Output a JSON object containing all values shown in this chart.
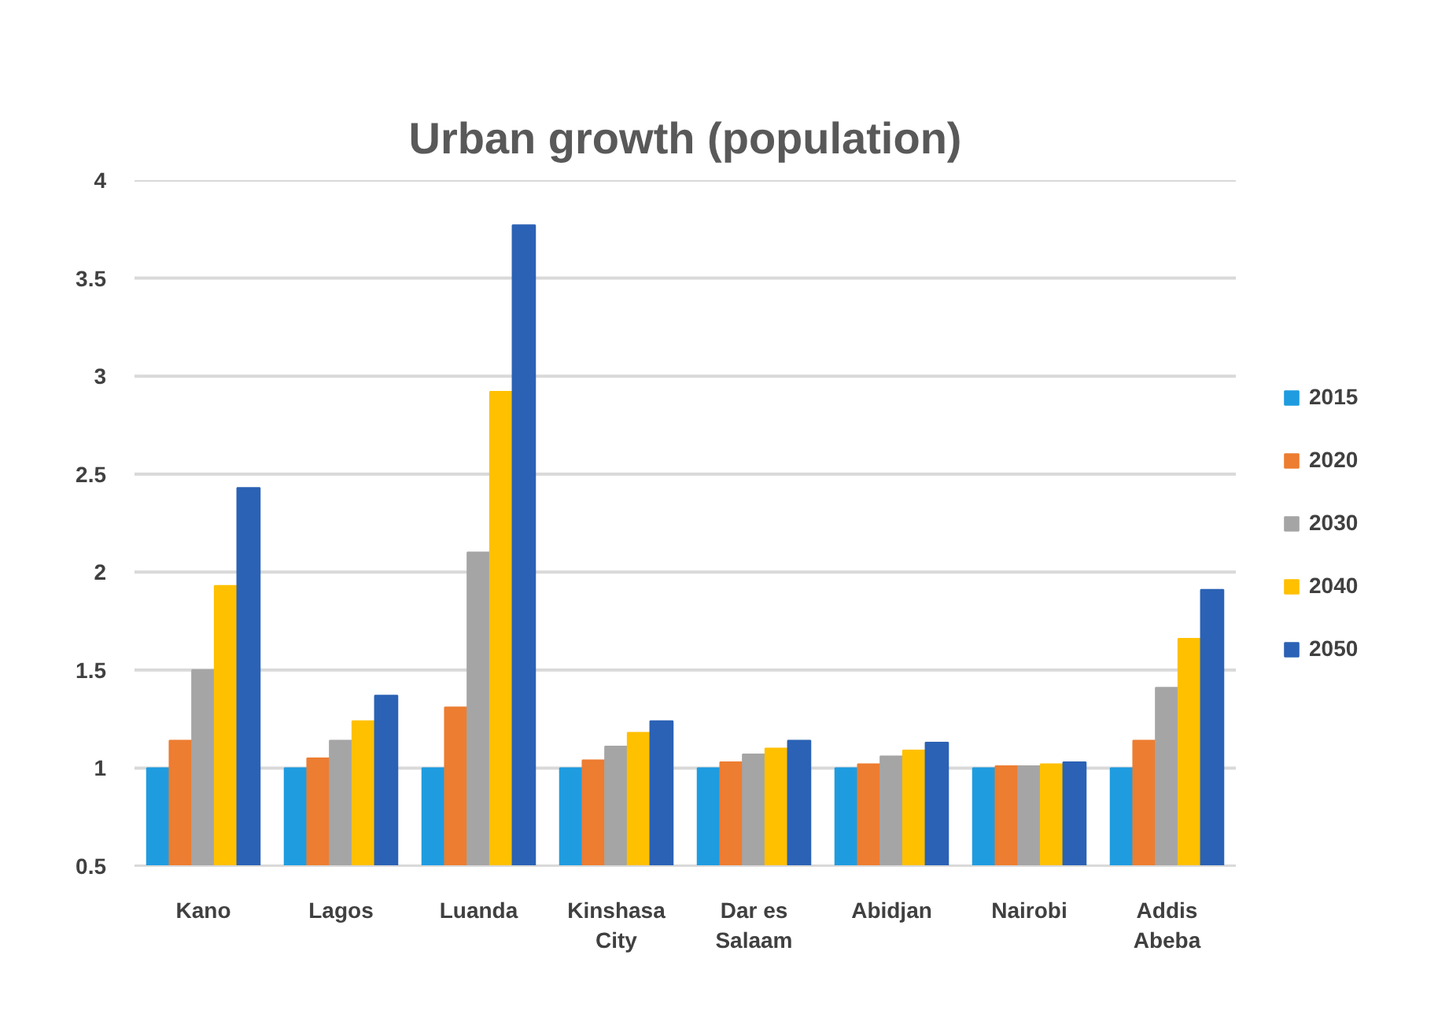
{
  "chart_data": {
    "type": "bar",
    "title": "Urban growth (population)",
    "categories": [
      "Kano",
      "Lagos",
      "Luanda",
      "Kinshasa City",
      "Dar es Salaam",
      "Abidjan",
      "Nairobi",
      "Addis Abeba"
    ],
    "series": [
      {
        "name": "2015",
        "color": "#1f9ce0",
        "values": [
          1.0,
          1.0,
          1.0,
          1.0,
          1.0,
          1.0,
          1.0,
          1.0
        ]
      },
      {
        "name": "2020",
        "color": "#ed7d31",
        "values": [
          1.14,
          1.05,
          1.31,
          1.04,
          1.03,
          1.02,
          1.01,
          1.14
        ]
      },
      {
        "name": "2030",
        "color": "#a5a5a5",
        "values": [
          1.5,
          1.14,
          2.1,
          1.11,
          1.07,
          1.06,
          1.01,
          1.41
        ]
      },
      {
        "name": "2040",
        "color": "#ffc000",
        "values": [
          1.93,
          1.24,
          2.92,
          1.18,
          1.1,
          1.09,
          1.02,
          1.66
        ]
      },
      {
        "name": "2050",
        "color": "#2b62b5",
        "values": [
          2.43,
          1.37,
          3.77,
          1.24,
          1.14,
          1.13,
          1.03,
          1.91
        ]
      }
    ],
    "ylim": [
      0.5,
      4
    ],
    "yticks": [
      0.5,
      1,
      1.5,
      2,
      2.5,
      3,
      3.5,
      4
    ],
    "grid": "y",
    "legend": "right"
  }
}
